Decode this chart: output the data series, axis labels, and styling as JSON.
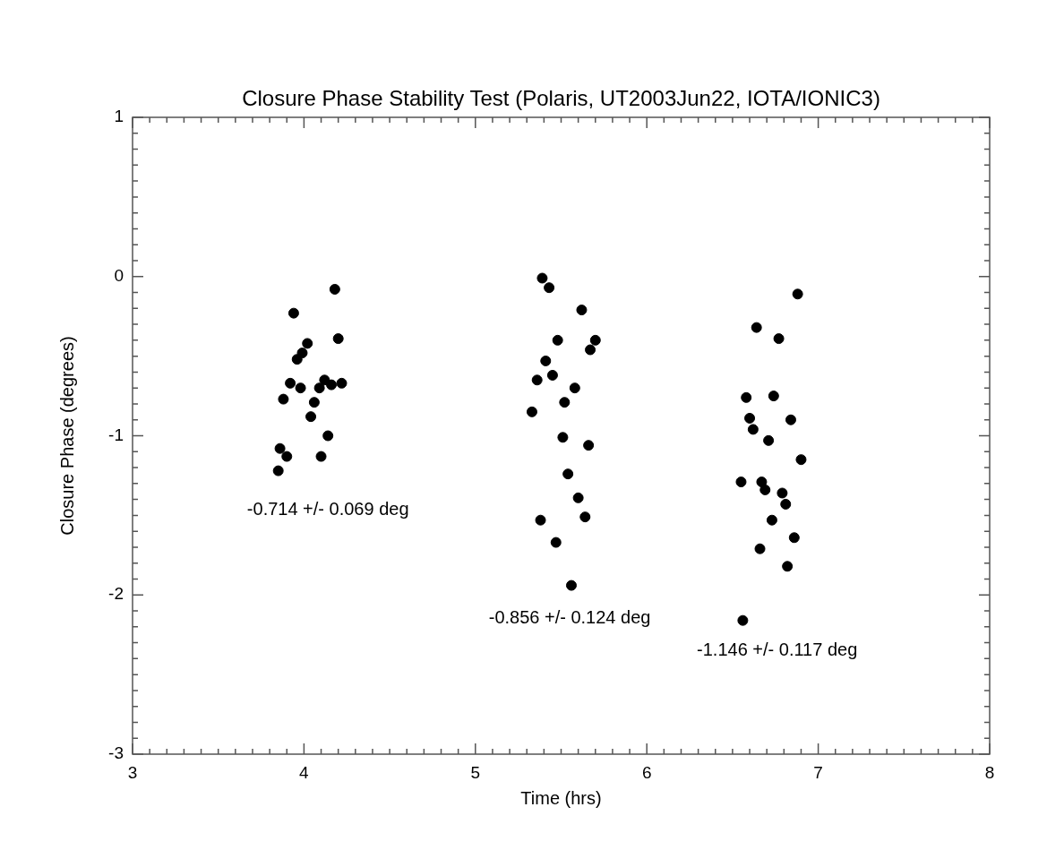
{
  "chart_data": {
    "type": "scatter",
    "title": "Closure Phase Stability Test (Polaris, UT2003Jun22, IOTA/IONIC3)",
    "xlabel": "Time (hrs)",
    "ylabel": "Closure Phase (degrees)",
    "x": [
      4.18,
      3.94,
      4.02,
      4.2,
      3.99,
      3.96,
      3.92,
      3.98,
      4.09,
      4.12,
      4.16,
      4.22,
      3.88,
      4.06,
      4.04,
      4.14,
      3.86,
      3.9,
      4.1,
      3.85,
      5.39,
      5.43,
      5.62,
      5.48,
      5.7,
      5.67,
      5.41,
      5.36,
      5.45,
      5.58,
      5.52,
      5.33,
      5.51,
      5.66,
      5.54,
      5.6,
      5.64,
      5.38,
      5.47,
      5.56,
      6.88,
      6.64,
      6.77,
      6.58,
      6.74,
      6.6,
      6.84,
      6.62,
      6.71,
      6.9,
      6.55,
      6.67,
      6.69,
      6.79,
      6.81,
      6.73,
      6.86,
      6.66,
      6.82,
      6.56
    ],
    "values": [
      -0.08,
      -0.23,
      -0.42,
      -0.39,
      -0.48,
      -0.52,
      -0.67,
      -0.7,
      -0.7,
      -0.65,
      -0.68,
      -0.67,
      -0.77,
      -0.79,
      -0.88,
      -1.0,
      -1.08,
      -1.13,
      -1.13,
      -1.22,
      -0.01,
      -0.07,
      -0.21,
      -0.4,
      -0.4,
      -0.46,
      -0.53,
      -0.65,
      -0.62,
      -0.7,
      -0.79,
      -0.85,
      -1.01,
      -1.06,
      -1.24,
      -1.39,
      -1.51,
      -1.53,
      -1.67,
      -1.94,
      -0.11,
      -0.32,
      -0.39,
      -0.76,
      -0.75,
      -0.89,
      -0.9,
      -0.96,
      -1.03,
      -1.15,
      -1.29,
      -1.29,
      -1.34,
      -1.36,
      -1.43,
      -1.53,
      -1.64,
      -1.71,
      -1.82,
      -2.16
    ],
    "color": "#000000",
    "marker": "circle",
    "grid": false,
    "legend": false,
    "xlim": [
      3,
      8
    ],
    "ylim": [
      -3,
      1
    ],
    "xticks": [
      3,
      {
        "value": 3.1,
        "label": null
      },
      {
        "value": 3.2,
        "label": null
      },
      {
        "value": 3.3,
        "label": null
      },
      {
        "value": 3.4,
        "label": null
      },
      {
        "value": 3.5,
        "label": null
      },
      {
        "value": 3.6,
        "label": null
      },
      {
        "value": 3.7,
        "label": null
      },
      {
        "value": 3.8,
        "label": null
      },
      {
        "value": 3.9,
        "label": null
      },
      4,
      {
        "value": 4.1,
        "label": null
      },
      {
        "value": 4.2,
        "label": null
      },
      {
        "value": 4.3,
        "label": null
      },
      {
        "value": 4.4,
        "label": null
      },
      {
        "value": 4.5,
        "label": null
      },
      {
        "value": 4.6,
        "label": null
      },
      {
        "value": 4.7,
        "label": null
      },
      {
        "value": 4.8,
        "label": null
      },
      {
        "value": 4.9,
        "label": null
      },
      5,
      {
        "value": 5.1,
        "label": null
      },
      {
        "value": 5.2,
        "label": null
      },
      {
        "value": 5.3,
        "label": null
      },
      {
        "value": 5.4,
        "label": null
      },
      {
        "value": 5.5,
        "label": null
      },
      {
        "value": 5.6,
        "label": null
      },
      {
        "value": 5.7,
        "label": null
      },
      {
        "value": 5.8,
        "label": null
      },
      {
        "value": 5.9,
        "label": null
      },
      6,
      {
        "value": 6.1,
        "label": null
      },
      {
        "value": 6.2,
        "label": null
      },
      {
        "value": 6.3,
        "label": null
      },
      {
        "value": 6.4,
        "label": null
      },
      {
        "value": 6.5,
        "label": null
      },
      {
        "value": 6.6,
        "label": null
      },
      {
        "value": 6.7,
        "label": null
      },
      {
        "value": 6.8,
        "label": null
      },
      {
        "value": 6.9,
        "label": null
      },
      7,
      {
        "value": 7.1,
        "label": null
      },
      {
        "value": 7.2,
        "label": null
      },
      {
        "value": 7.3,
        "label": null
      },
      {
        "value": 7.4,
        "label": null
      },
      {
        "value": 7.5,
        "label": null
      },
      {
        "value": 7.6,
        "label": null
      },
      {
        "value": 7.7,
        "label": null
      },
      {
        "value": 7.8,
        "label": null
      },
      {
        "value": 7.9,
        "label": null
      },
      8
    ],
    "yticks": [
      -3,
      {
        "value": -2.9,
        "label": null
      },
      {
        "value": -2.8,
        "label": null
      },
      {
        "value": -2.7,
        "label": null
      },
      {
        "value": -2.6,
        "label": null
      },
      {
        "value": -2.5,
        "label": null
      },
      {
        "value": -2.4,
        "label": null
      },
      {
        "value": -2.3,
        "label": null
      },
      {
        "value": -2.2,
        "label": null
      },
      {
        "value": -2.1,
        "label": null
      },
      -2,
      {
        "value": -1.9,
        "label": null
      },
      {
        "value": -1.8,
        "label": null
      },
      {
        "value": -1.7,
        "label": null
      },
      {
        "value": -1.6,
        "label": null
      },
      {
        "value": -1.5,
        "label": null
      },
      {
        "value": -1.4,
        "label": null
      },
      {
        "value": -1.3,
        "label": null
      },
      {
        "value": -1.2,
        "label": null
      },
      {
        "value": -1.1,
        "label": null
      },
      -1,
      {
        "value": -0.9,
        "label": null
      },
      {
        "value": -0.8,
        "label": null
      },
      {
        "value": -0.7,
        "label": null
      },
      {
        "value": -0.6,
        "label": null
      },
      {
        "value": -0.5,
        "label": null
      },
      {
        "value": -0.4,
        "label": null
      },
      {
        "value": -0.3,
        "label": null
      },
      {
        "value": -0.2,
        "label": null
      },
      {
        "value": -0.1,
        "label": null
      },
      0,
      {
        "value": 0.1,
        "label": null
      },
      {
        "value": 0.2,
        "label": null
      },
      {
        "value": 0.3,
        "label": null
      },
      {
        "value": 0.4,
        "label": null
      },
      {
        "value": 0.5,
        "label": null
      },
      {
        "value": 0.6,
        "label": null
      },
      {
        "value": 0.7,
        "label": null
      },
      {
        "value": 0.8,
        "label": null
      },
      {
        "value": 0.9,
        "label": null
      },
      1
    ],
    "annotations": [
      "-0.714 +/- 0.069 deg",
      "-0.856 +/- 0.124 deg",
      "-1.146 +/- 0.117 deg"
    ]
  }
}
